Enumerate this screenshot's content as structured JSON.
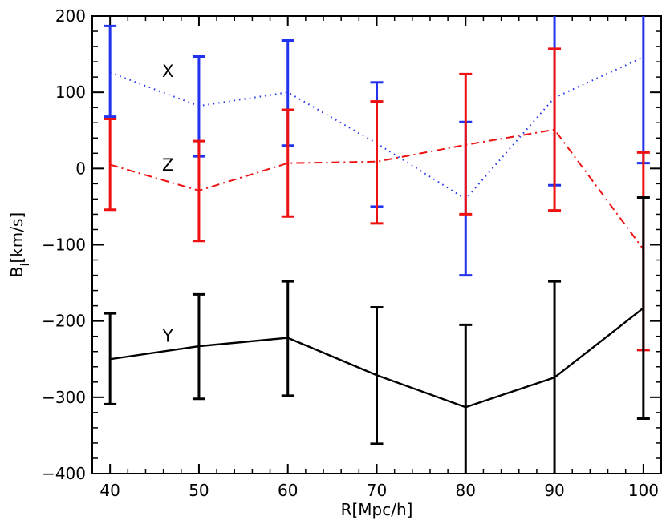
{
  "chart_data": {
    "type": "line",
    "title": "",
    "xlabel": "R[Mpc/h]",
    "ylabel": {
      "base": "B",
      "subscript": "i",
      "suffix": "[km/s]"
    },
    "xlim": [
      38,
      102
    ],
    "ylim": [
      -400,
      200
    ],
    "x_ticks": [
      40,
      50,
      60,
      70,
      80,
      90,
      100
    ],
    "y_ticks": [
      -400,
      -300,
      -200,
      -100,
      0,
      100,
      200
    ],
    "x_tick_labels": [
      "40",
      "50",
      "60",
      "70",
      "80",
      "90",
      "100"
    ],
    "y_tick_labels": [
      "−400",
      "−300",
      "−200",
      "−100",
      "0",
      "100",
      "200"
    ],
    "x": [
      40,
      50,
      60,
      70,
      80,
      90,
      100
    ],
    "series": [
      {
        "name": "X",
        "color": "#2233ee",
        "line_style": "dotted",
        "label_anchor": {
          "x": 46.5,
          "y": 120
        },
        "values": [
          126,
          82,
          100,
          33,
          -40,
          93,
          146
        ],
        "err_low": [
          68,
          16,
          30,
          -50,
          -140,
          -22,
          7
        ],
        "err_high": [
          187,
          147,
          168,
          113,
          61,
          208,
          208
        ]
      },
      {
        "name": "Z",
        "color": "#ee1111",
        "line_style": "dashdot",
        "label_anchor": {
          "x": 46.5,
          "y": -3
        },
        "values": [
          5,
          -29,
          7,
          9,
          31,
          51,
          -106
        ],
        "err_low": [
          -54,
          -95,
          -63,
          -72,
          -60,
          -55,
          -238
        ],
        "err_high": [
          65,
          36,
          77,
          88,
          124,
          157,
          21
        ]
      },
      {
        "name": "Y",
        "color": "#000000",
        "line_style": "solid",
        "label_anchor": {
          "x": 46.5,
          "y": -227
        },
        "values": [
          -250,
          -233,
          -222,
          -271,
          -313,
          -274,
          -183
        ],
        "err_low": [
          -309,
          -302,
          -298,
          -361,
          -420,
          -420,
          -328
        ],
        "err_high": [
          -190,
          -165,
          -148,
          -182,
          -205,
          -148,
          -38
        ]
      }
    ]
  }
}
